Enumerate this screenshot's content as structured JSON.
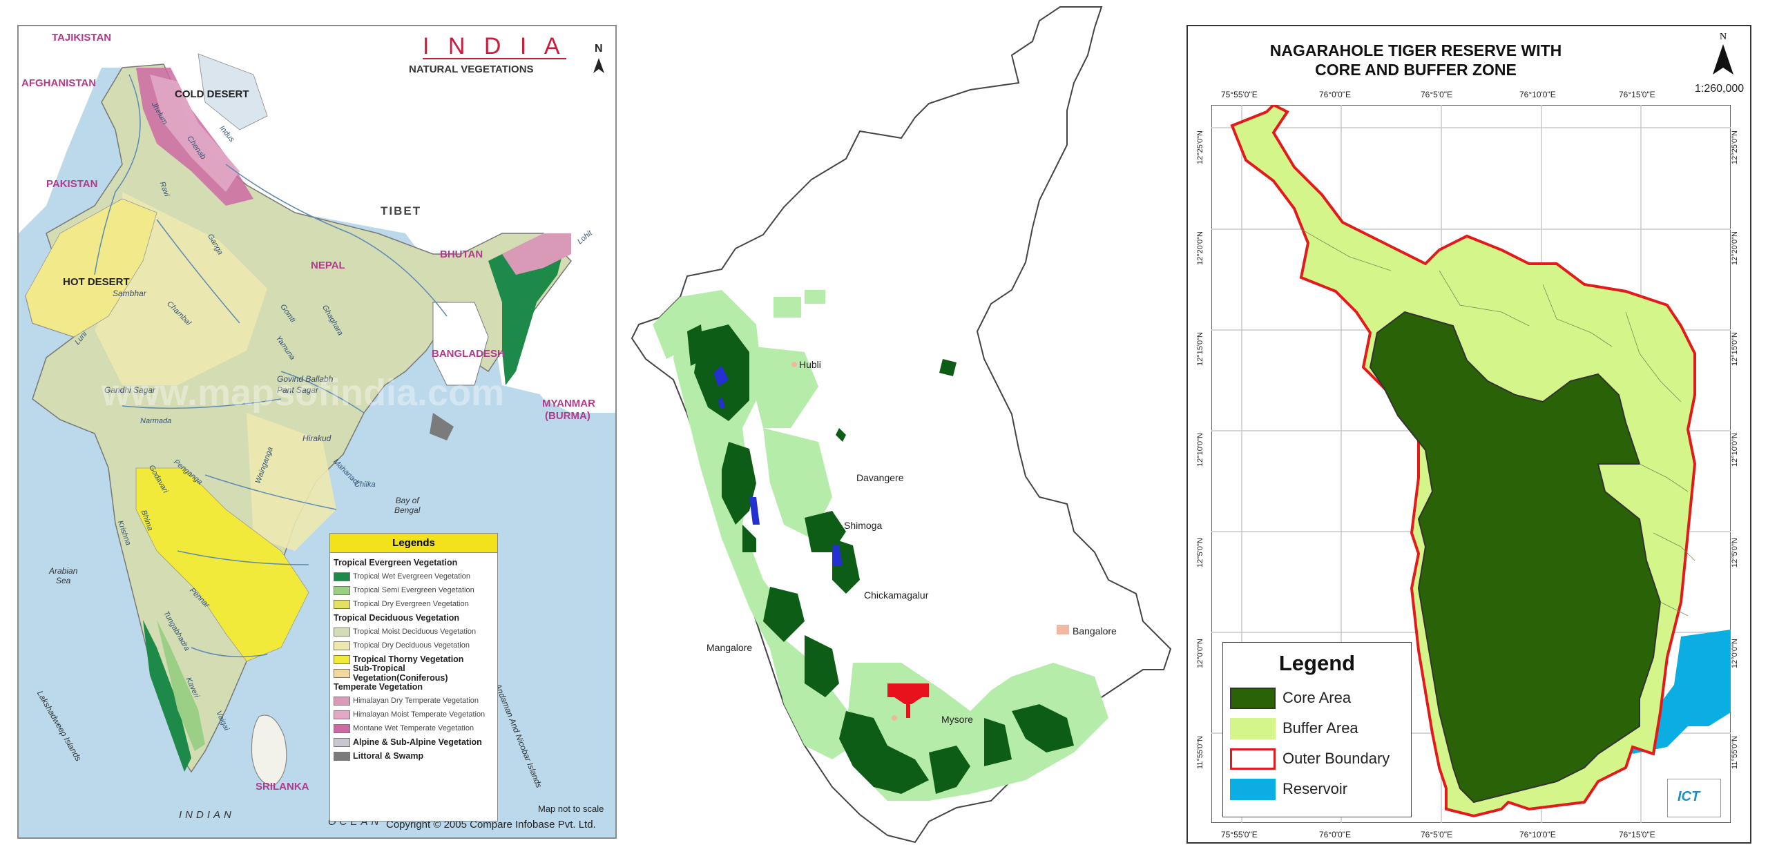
{
  "panel1": {
    "title": "I N D I A",
    "subtitle": "NATURAL VEGETATIONS",
    "north": "N",
    "countries": [
      "TAJIKISTAN",
      "AFGHANISTAN",
      "PAKISTAN",
      "TIBET",
      "NEPAL",
      "BHUTAN",
      "BANGLADESH",
      "MYANMAR",
      "(BURMA)",
      "SRILANKA"
    ],
    "regions": [
      "COLD DESERT",
      "HOT DESERT"
    ],
    "places": [
      "Gandhi Sagar",
      "Govind Ballabh",
      "Pant Sagar",
      "Hirakud",
      "Sambhar"
    ],
    "rivers": [
      "Jhelum",
      "Chenab",
      "Indus",
      "Ravi",
      "Ganga",
      "Gomti",
      "Yamuna",
      "Ghaghara",
      "Chambal",
      "Luni",
      "Narmada",
      "Wainganga",
      "Mahanadi",
      "Chilka",
      "Godavari",
      "Penganga",
      "Krishna",
      "Bhima",
      "Tungabhadra",
      "Pennar",
      "Kaveri",
      "Vaigai",
      "Lohit"
    ],
    "seas": {
      "arabian": [
        "Arabian",
        "Sea"
      ],
      "bengal": [
        "Bay of",
        "Bengal"
      ]
    },
    "islands": [
      "Andaman And Nicobar Islands",
      "Lakshadweep Islands"
    ],
    "ocean": [
      "INDIAN",
      "OCEAN"
    ],
    "watermark": "www.mapsofindia.com",
    "note": "Map not to scale",
    "copyright": "Copyright © 2005 Compare Infobase Pvt. Ltd.",
    "legend": {
      "title": "Legends",
      "rows": [
        {
          "label": "Tropical Evergreen Vegetation",
          "category": true,
          "color": ""
        },
        {
          "label": "Tropical Wet Evergreen Vegetation",
          "category": false,
          "color": "#1e8a4a"
        },
        {
          "label": "Tropical Semi Evergreen Vegetation",
          "category": false,
          "color": "#9ccf86"
        },
        {
          "label": "Tropical Dry Evergreen Vegetation",
          "category": false,
          "color": "#e4e060"
        },
        {
          "label": "Tropical Deciduous Vegetation",
          "category": true,
          "color": ""
        },
        {
          "label": "Tropical Moist Deciduous Vegetation",
          "category": false,
          "color": "#d2ddb8"
        },
        {
          "label": "Tropical Dry Deciduous Vegetation",
          "category": false,
          "color": "#ece8b0"
        },
        {
          "label": "Tropical Thorny Vegetation",
          "category": true,
          "color": "#f2ea3a"
        },
        {
          "label": "Sub-Tropical Vegetation(Coniferous)",
          "category": true,
          "color": "#f1d7a0"
        },
        {
          "label": "Temperate Vegetation",
          "category": true,
          "color": ""
        },
        {
          "label": "Himalayan Dry Temperate Vegetation",
          "category": false,
          "color": "#d89ab6"
        },
        {
          "label": "Himalayan Moist Temperate Vegetation",
          "category": false,
          "color": "#e2a8c6"
        },
        {
          "label": "Montane Wet Temperate Vegetation",
          "category": false,
          "color": "#cc6aa2"
        },
        {
          "label": "Alpine & Sub-Alpine Vegetation",
          "category": true,
          "color": "#c7c7cf"
        },
        {
          "label": "Littoral & Swamp",
          "category": true,
          "color": "#7b7b7b"
        }
      ]
    }
  },
  "panel2": {
    "cities": [
      "Hubli",
      "Davangere",
      "Shimoga",
      "Chickamagalur",
      "Mangalore",
      "Bangalore",
      "Mysore"
    ],
    "colors": {
      "dense_forest": "#0d5d17",
      "light_forest": "#b6ecaa",
      "water": "#2430d0",
      "marker": "#e8121c"
    }
  },
  "panel3": {
    "title": "NAGARAHOLE TIGER RESERVE WITH",
    "title_line2": "CORE AND BUFFER ZONE",
    "north": "N",
    "scale": "1:260,000",
    "lon_labels": [
      "75°55'0\"E",
      "76°0'0\"E",
      "76°5'0\"E",
      "76°10'0\"E",
      "76°15'0\"E"
    ],
    "lat_labels": [
      "12°25'0\"N",
      "12°20'0\"N",
      "12°15'0\"N",
      "12°10'0\"N",
      "12°5'0\"N",
      "12°0'0\"N",
      "11°55'0\"N"
    ],
    "logo": "ICT",
    "legend": {
      "title": "Legend",
      "rows": [
        {
          "label": "Core Area",
          "color": "#2a6307"
        },
        {
          "label": "Buffer Area",
          "color": "#d4f58a"
        },
        {
          "label": "Outer Boundary",
          "color": "#e31a1c"
        },
        {
          "label": "Reservoir",
          "color": "#0aaee3"
        }
      ]
    }
  }
}
